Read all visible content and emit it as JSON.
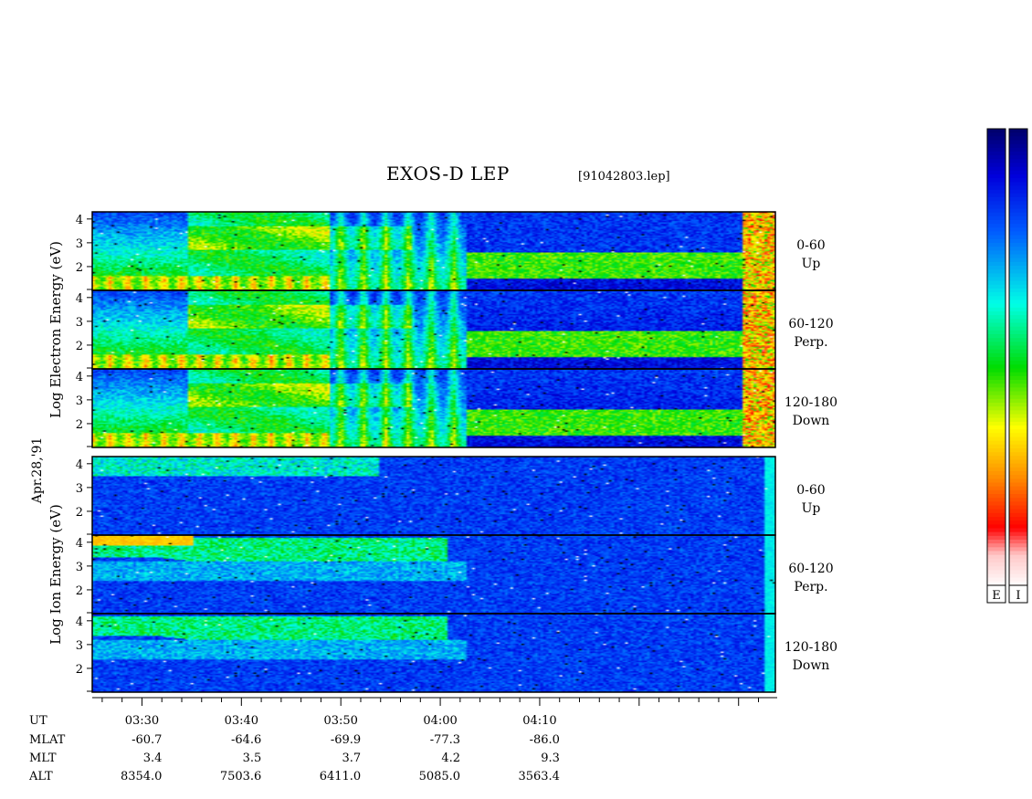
{
  "header": {
    "title": "EXOS-D LEP",
    "file": "[91042803.lep]"
  },
  "chart_data": {
    "type": "heatmap",
    "title": "EXOS-D LEP",
    "subtitle": "[91042803.lep]",
    "date_label": "Apr.28,'91",
    "xlabel": "UT",
    "x_ticks": [
      "03:30",
      "03:40",
      "03:50",
      "04:00",
      "04:10"
    ],
    "ephemeris": [
      {
        "label": "MLAT",
        "values": [
          "-60.7",
          "-64.6",
          "-69.9",
          "-77.3",
          "-86.0"
        ]
      },
      {
        "label": "MLT",
        "values": [
          "3.4",
          "3.5",
          "3.7",
          "4.2",
          "9.3"
        ]
      },
      {
        "label": "ALT",
        "values": [
          "8354.0",
          "7503.6",
          "6411.0",
          "5085.0",
          "3563.4"
        ]
      }
    ],
    "groups": [
      {
        "species": "electron",
        "ylabel": "Log Electron Energy (eV)",
        "panels": [
          {
            "pitch": "0-60",
            "direction": "Up",
            "y_ticks": [
              "2",
              "3",
              "4"
            ]
          },
          {
            "pitch": "60-120",
            "direction": "Perp.",
            "y_ticks": [
              "2",
              "3",
              "4"
            ]
          },
          {
            "pitch": "120-180",
            "direction": "Down",
            "y_ticks": [
              "2",
              "3",
              "4"
            ]
          }
        ]
      },
      {
        "species": "ion",
        "ylabel": "Log Ion Energy (eV)",
        "panels": [
          {
            "pitch": "0-60",
            "direction": "Up",
            "y_ticks": [
              "2",
              "3",
              "4"
            ]
          },
          {
            "pitch": "60-120",
            "direction": "Perp.",
            "y_ticks": [
              "2",
              "3",
              "4"
            ]
          },
          {
            "pitch": "120-180",
            "direction": "Down",
            "y_ticks": [
              "2",
              "3",
              "4"
            ]
          }
        ]
      }
    ],
    "colorbars": [
      {
        "label": "E"
      },
      {
        "label": "I"
      }
    ],
    "colormap": [
      "#ffffff",
      "#ff0000",
      "#ff8800",
      "#ffff00",
      "#00ff00",
      "#00ffff",
      "#0088ff",
      "#0000ff",
      "#000080"
    ]
  }
}
